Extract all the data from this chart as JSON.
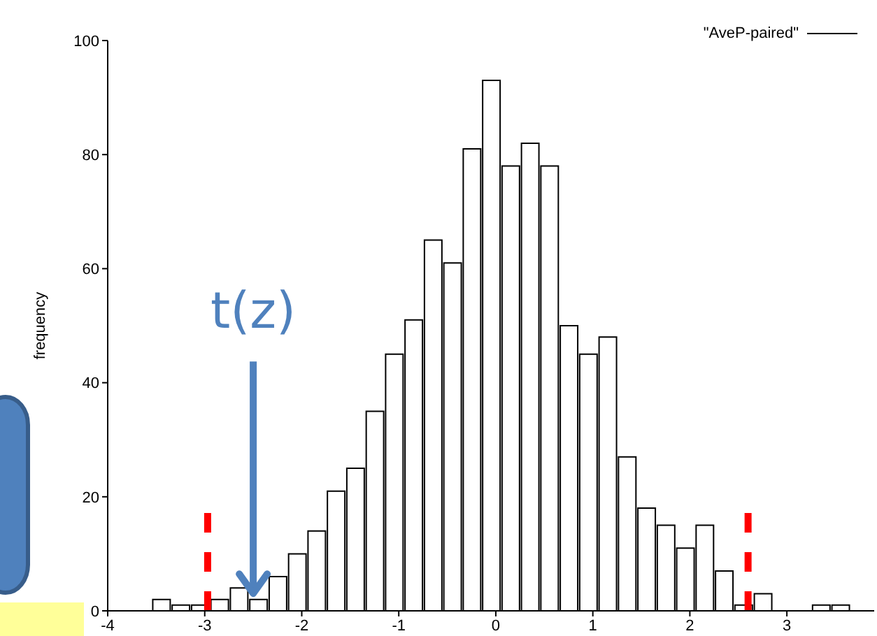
{
  "chart_data": {
    "type": "histogram",
    "bins": [
      -3.55,
      -3.35,
      -3.15,
      -2.95,
      -2.75,
      -2.55,
      -2.35,
      -2.15,
      -1.95,
      -1.75,
      -1.55,
      -1.35,
      -1.15,
      -0.95,
      -0.75,
      -0.55,
      -0.35,
      -0.15,
      0.05,
      0.25,
      0.45,
      0.65,
      0.85,
      1.05,
      1.25,
      1.45,
      1.65,
      1.85,
      2.05,
      2.25,
      2.45,
      2.65,
      2.85,
      3.05,
      3.25,
      3.45,
      3.65
    ],
    "series": [
      {
        "name": "\"AveP-paired\"",
        "color": "#000000",
        "values": [
          2,
          1,
          1,
          2,
          4,
          2,
          6,
          10,
          14,
          21,
          25,
          35,
          45,
          51,
          65,
          61,
          81,
          93,
          78,
          82,
          78,
          50,
          45,
          48,
          27,
          18,
          15,
          11,
          15,
          7,
          1,
          3,
          0,
          0,
          1,
          1
        ]
      }
    ],
    "ylabel": "frequency",
    "xlim": [
      -4,
      3.9
    ],
    "xticks": [
      -4,
      -3,
      -2,
      -1,
      0,
      1,
      2,
      3
    ],
    "ylim": [
      0,
      100
    ],
    "yticks": [
      0,
      20,
      40,
      60,
      80,
      100
    ],
    "legend": "top right",
    "ref_lines": [
      {
        "axis": "x",
        "value": -2.97,
        "color": "#ff0000",
        "line_style": "dashed"
      },
      {
        "axis": "x",
        "value": 2.6,
        "color": "#ff0000",
        "line_style": "dashed"
      }
    ],
    "annotations": [
      {
        "text": "t(z)",
        "x": -2.5,
        "y": 2
      }
    ]
  }
}
